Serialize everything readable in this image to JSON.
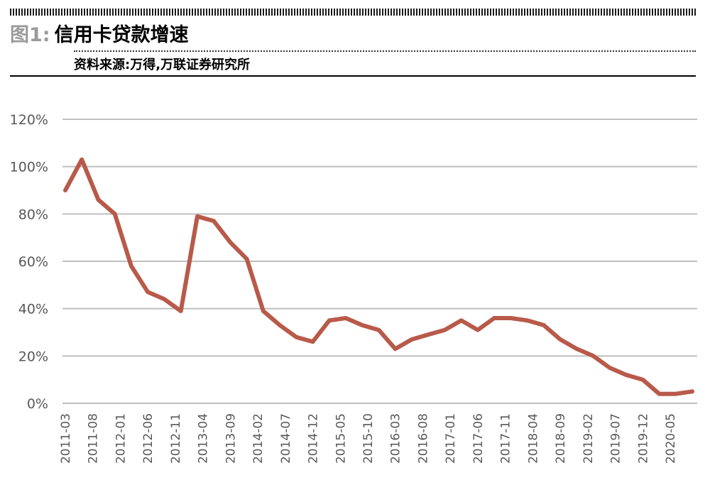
{
  "header": {
    "figure_label": "图1:",
    "figure_title": "信用卡贷款增速",
    "source": "资料来源:万得,万联证券研究所"
  },
  "colors": {
    "line": "#b85a4a",
    "grid": "#bfbfbf",
    "tick_text": "#595959"
  },
  "chart_data": {
    "type": "line",
    "title": "信用卡贷款增速",
    "ylim": [
      0,
      1.2
    ],
    "y_ticks": [
      {
        "value": 0,
        "label": "0%"
      },
      {
        "value": 0.2,
        "label": "20%"
      },
      {
        "value": 0.4,
        "label": "40%"
      },
      {
        "value": 0.6,
        "label": "60%"
      },
      {
        "value": 0.8,
        "label": "80%"
      },
      {
        "value": 1.0,
        "label": "100%"
      },
      {
        "value": 1.2,
        "label": "120%"
      }
    ],
    "x_tick_labels": [
      "2011-03",
      "2011-08",
      "2012-01",
      "2012-06",
      "2012-11",
      "2013-04",
      "2013-09",
      "2014-02",
      "2014-07",
      "2014-12",
      "2015-05",
      "2015-10",
      "2016-03",
      "2016-08",
      "2017-01",
      "2017-06",
      "2017-11",
      "2018-04",
      "2018-09",
      "2019-02",
      "2019-07",
      "2019-12",
      "2020-05"
    ],
    "grid": true,
    "legend": "none",
    "series": [
      {
        "x": [
          "2011-03",
          "2011-06",
          "2011-09",
          "2011-12",
          "2012-03",
          "2012-06",
          "2012-09",
          "2012-12",
          "2013-03",
          "2013-06",
          "2013-09",
          "2013-12",
          "2014-03",
          "2014-06",
          "2014-09",
          "2014-12",
          "2015-03",
          "2015-06",
          "2015-09",
          "2015-12",
          "2016-03",
          "2016-06",
          "2016-09",
          "2016-12",
          "2017-03",
          "2017-06",
          "2017-09",
          "2017-12",
          "2018-03",
          "2018-06",
          "2018-09",
          "2018-12",
          "2019-03",
          "2019-06",
          "2019-09",
          "2019-12",
          "2020-03",
          "2020-06",
          "2020-09"
        ],
        "values": [
          0.9,
          1.03,
          0.86,
          0.8,
          0.58,
          0.47,
          0.44,
          0.39,
          0.79,
          0.77,
          0.68,
          0.61,
          0.39,
          0.33,
          0.28,
          0.26,
          0.35,
          0.36,
          0.33,
          0.31,
          0.23,
          0.27,
          0.29,
          0.31,
          0.35,
          0.31,
          0.36,
          0.36,
          0.35,
          0.33,
          0.27,
          0.23,
          0.2,
          0.15,
          0.12,
          0.1,
          0.04,
          0.04,
          0.05
        ]
      }
    ]
  }
}
